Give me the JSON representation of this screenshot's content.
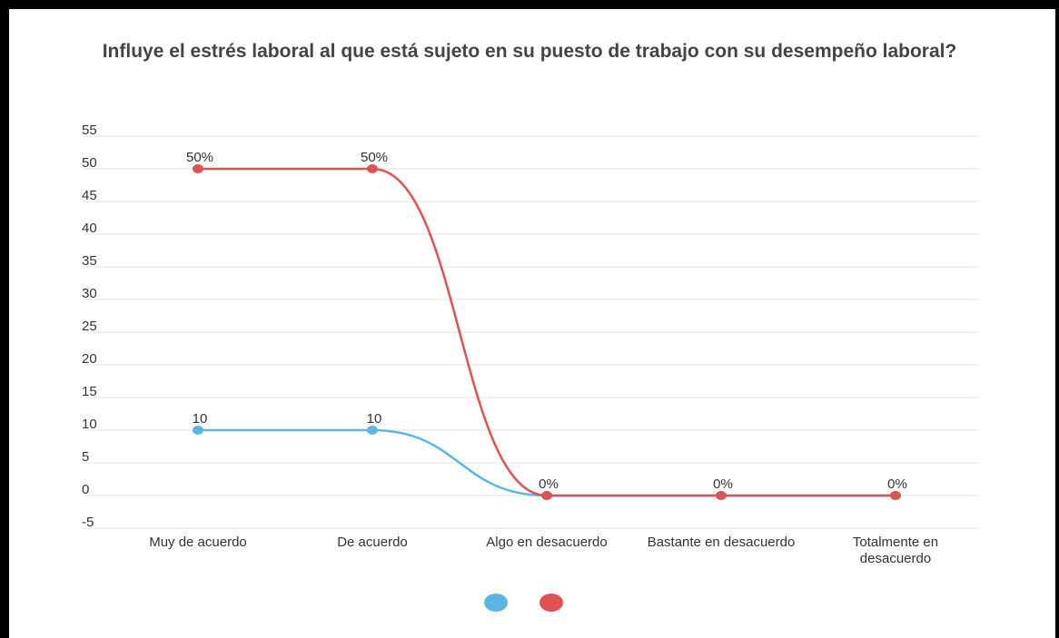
{
  "chart_data": {
    "type": "line",
    "title": "Influye el estrés laboral al que está sujeto en su puesto de trabajo con su desempeño laboral?",
    "categories": [
      "Muy de acuerdo",
      "De acuerdo",
      "Algo en desacuerdo",
      "Bastante en desacuerdo",
      "Totalmente en desacuerdo"
    ],
    "series": [
      {
        "color": "#5bb6e6",
        "values": [
          10,
          10,
          0,
          0,
          0
        ],
        "value_labels": [
          "10",
          "10",
          null,
          null,
          null
        ]
      },
      {
        "color": "#e05252",
        "values": [
          50,
          50,
          0,
          0,
          0
        ],
        "value_labels": [
          "50%",
          "50%",
          "0%",
          "0%",
          "0%"
        ]
      }
    ],
    "ylim": [
      -5,
      55
    ],
    "yticks": [
      -5,
      0,
      5,
      10,
      15,
      20,
      25,
      30,
      35,
      40,
      45,
      50,
      55
    ],
    "grid": true
  }
}
